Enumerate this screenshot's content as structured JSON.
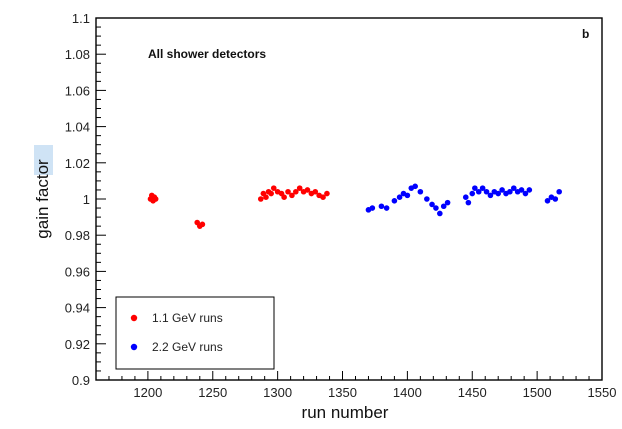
{
  "chart_data": {
    "type": "scatter",
    "xlabel": "run number",
    "ylabel": "gain factor",
    "annotation": "All shower detectors",
    "panel_label": "b",
    "xlim": [
      1160,
      1550
    ],
    "ylim": [
      0.9,
      1.1
    ],
    "x_ticks": [
      1200,
      1250,
      1300,
      1350,
      1400,
      1450,
      1500,
      1550
    ],
    "y_ticks": [
      0.9,
      0.92,
      0.94,
      0.96,
      0.98,
      1,
      1.02,
      1.04,
      1.06,
      1.08,
      1.1
    ],
    "x_tick_labels": [
      "1200",
      "1250",
      "1300",
      "1350",
      "1400",
      "1450",
      "1500",
      "1550"
    ],
    "y_tick_labels": [
      "0.9",
      "0.92",
      "0.94",
      "0.96",
      "0.98",
      "1",
      "1.02",
      "1.04",
      "1.06",
      "1.08",
      "1.1"
    ],
    "legend_position": "bottom-left",
    "grid": false,
    "series": [
      {
        "name": "1.1 GeV runs",
        "color": "#ff0000",
        "points": [
          [
            1202,
            1.0
          ],
          [
            1203,
            1.002
          ],
          [
            1204,
            0.999
          ],
          [
            1205,
            1.001
          ],
          [
            1206,
            1.0
          ],
          [
            1238,
            0.987
          ],
          [
            1240,
            0.985
          ],
          [
            1242,
            0.986
          ],
          [
            1287,
            1.0
          ],
          [
            1289,
            1.003
          ],
          [
            1291,
            1.001
          ],
          [
            1293,
            1.004
          ],
          [
            1295,
            1.003
          ],
          [
            1297,
            1.006
          ],
          [
            1300,
            1.004
          ],
          [
            1303,
            1.003
          ],
          [
            1305,
            1.001
          ],
          [
            1308,
            1.004
          ],
          [
            1311,
            1.002
          ],
          [
            1314,
            1.004
          ],
          [
            1317,
            1.006
          ],
          [
            1320,
            1.004
          ],
          [
            1323,
            1.005
          ],
          [
            1326,
            1.003
          ],
          [
            1329,
            1.004
          ],
          [
            1332,
            1.002
          ],
          [
            1335,
            1.001
          ],
          [
            1338,
            1.003
          ]
        ]
      },
      {
        "name": "2.2 GeV runs",
        "color": "#0000ff",
        "points": [
          [
            1370,
            0.994
          ],
          [
            1373,
            0.995
          ],
          [
            1380,
            0.996
          ],
          [
            1384,
            0.995
          ],
          [
            1390,
            0.999
          ],
          [
            1394,
            1.001
          ],
          [
            1397,
            1.003
          ],
          [
            1400,
            1.002
          ],
          [
            1403,
            1.006
          ],
          [
            1406,
            1.007
          ],
          [
            1410,
            1.004
          ],
          [
            1415,
            1.0
          ],
          [
            1419,
            0.997
          ],
          [
            1422,
            0.995
          ],
          [
            1425,
            0.992
          ],
          [
            1428,
            0.996
          ],
          [
            1431,
            0.998
          ],
          [
            1445,
            1.001
          ],
          [
            1447,
            0.998
          ],
          [
            1450,
            1.003
          ],
          [
            1452,
            1.006
          ],
          [
            1455,
            1.004
          ],
          [
            1458,
            1.006
          ],
          [
            1461,
            1.004
          ],
          [
            1464,
            1.002
          ],
          [
            1467,
            1.004
          ],
          [
            1470,
            1.003
          ],
          [
            1473,
            1.005
          ],
          [
            1476,
            1.003
          ],
          [
            1479,
            1.004
          ],
          [
            1482,
            1.006
          ],
          [
            1485,
            1.004
          ],
          [
            1488,
            1.005
          ],
          [
            1491,
            1.003
          ],
          [
            1494,
            1.005
          ],
          [
            1508,
            0.999
          ],
          [
            1511,
            1.001
          ],
          [
            1514,
            1.0
          ],
          [
            1517,
            1.004
          ]
        ]
      }
    ]
  }
}
